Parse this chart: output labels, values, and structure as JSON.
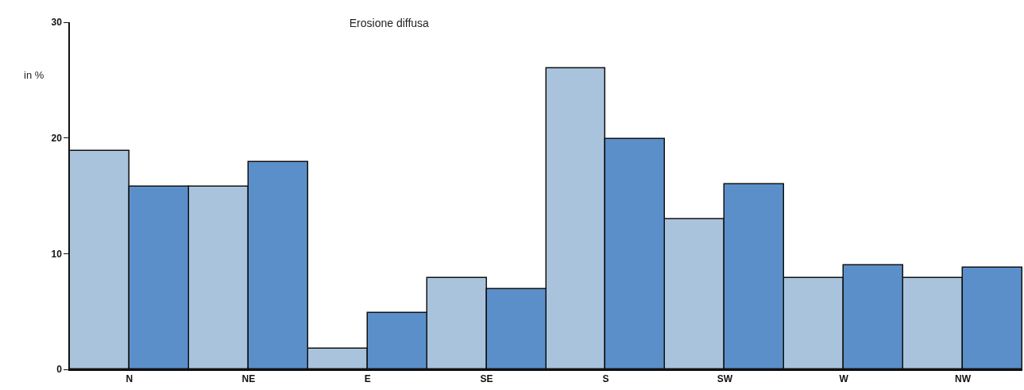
{
  "chart_data": {
    "type": "bar",
    "title": "Erosione diffusa",
    "ylabel": "in %",
    "categories": [
      "N",
      "NE",
      "E",
      "SE",
      "S",
      "SW",
      "W",
      "NW"
    ],
    "series": [
      {
        "color": "#a9c3dd",
        "values": [
          18.9,
          15.8,
          1.8,
          7.9,
          26.0,
          13.0,
          7.9,
          7.9
        ]
      },
      {
        "color": "#5b8fc9",
        "values": [
          15.8,
          17.9,
          4.9,
          6.9,
          19.9,
          16.0,
          9.0,
          8.8
        ]
      }
    ],
    "ylim": [
      0,
      30
    ],
    "yticks": [
      0,
      10,
      20,
      30
    ],
    "grid": false
  }
}
